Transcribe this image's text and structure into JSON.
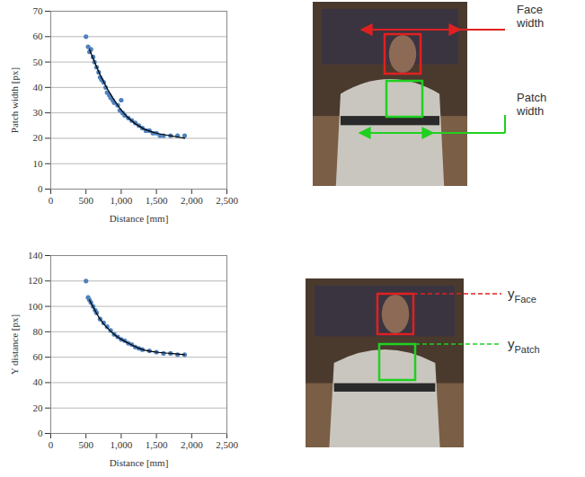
{
  "chart_data": [
    {
      "type": "scatter",
      "xlabel": "Distance [mm]",
      "ylabel": "Patch width [px]",
      "xlim": [
        0,
        2500
      ],
      "xticks": [
        0,
        500,
        1000,
        1500,
        2000,
        2500
      ],
      "ylim": [
        0,
        70
      ],
      "yticks": [
        0,
        10,
        20,
        30,
        40,
        50,
        60,
        70
      ],
      "grid": true,
      "series": [
        {
          "type": "scatter",
          "color": "#4f81bd",
          "marker": "circle",
          "x": [
            500,
            530,
            550,
            570,
            600,
            620,
            650,
            680,
            700,
            720,
            750,
            780,
            800,
            830,
            850,
            880,
            900,
            950,
            980,
            1000,
            1020,
            1050,
            1100,
            1150,
            1200,
            1250,
            1300,
            1350,
            1400,
            1450,
            1500,
            1550,
            1600,
            1700,
            1800,
            1900
          ],
          "values": [
            60,
            56,
            54,
            55,
            52,
            50,
            48,
            46,
            44,
            43,
            42,
            40,
            38,
            37,
            36,
            35,
            34,
            33,
            31,
            35,
            30,
            29,
            28,
            27,
            26,
            25,
            24,
            23,
            23,
            22,
            22,
            21,
            21,
            21,
            21,
            21
          ]
        },
        {
          "type": "line",
          "color": "#000000",
          "line_style": "solid",
          "x": [
            550,
            700,
            900,
            1100,
            1300,
            1500,
            1700,
            1900
          ],
          "values": [
            55,
            45,
            35,
            28,
            24,
            22,
            21,
            20
          ]
        }
      ]
    },
    {
      "type": "scatter",
      "xlabel": "Distance [mm]",
      "ylabel": "Y distance [px]",
      "xlim": [
        0,
        2500
      ],
      "xticks": [
        0,
        500,
        1000,
        1500,
        2000,
        2500
      ],
      "ylim": [
        0,
        140
      ],
      "yticks": [
        0,
        20,
        40,
        60,
        80,
        100,
        120,
        140
      ],
      "grid": true,
      "series": [
        {
          "type": "scatter",
          "color": "#4f81bd",
          "marker": "circle",
          "x": [
            500,
            530,
            550,
            570,
            600,
            630,
            650,
            700,
            750,
            800,
            850,
            900,
            950,
            1000,
            1050,
            1100,
            1150,
            1200,
            1250,
            1300,
            1400,
            1500,
            1600,
            1700,
            1800,
            1900
          ],
          "values": [
            120,
            107,
            105,
            103,
            100,
            97,
            95,
            90,
            87,
            84,
            81,
            78,
            76,
            74,
            73,
            71,
            70,
            68,
            67,
            66,
            65,
            64,
            63,
            63,
            62,
            62
          ]
        },
        {
          "type": "line",
          "color": "#000000",
          "line_style": "solid",
          "x": [
            550,
            700,
            900,
            1100,
            1300,
            1500,
            1700,
            1900
          ],
          "values": [
            105,
            90,
            78,
            71,
            66,
            64,
            63,
            62
          ]
        }
      ]
    }
  ],
  "images": [
    {
      "labels": [
        {
          "text": "Face width"
        },
        {
          "text": "Patch width"
        }
      ]
    },
    {
      "labels": [
        {
          "text": "y",
          "subscript": "Face"
        },
        {
          "text": "y",
          "subscript": "Patch"
        }
      ]
    }
  ]
}
